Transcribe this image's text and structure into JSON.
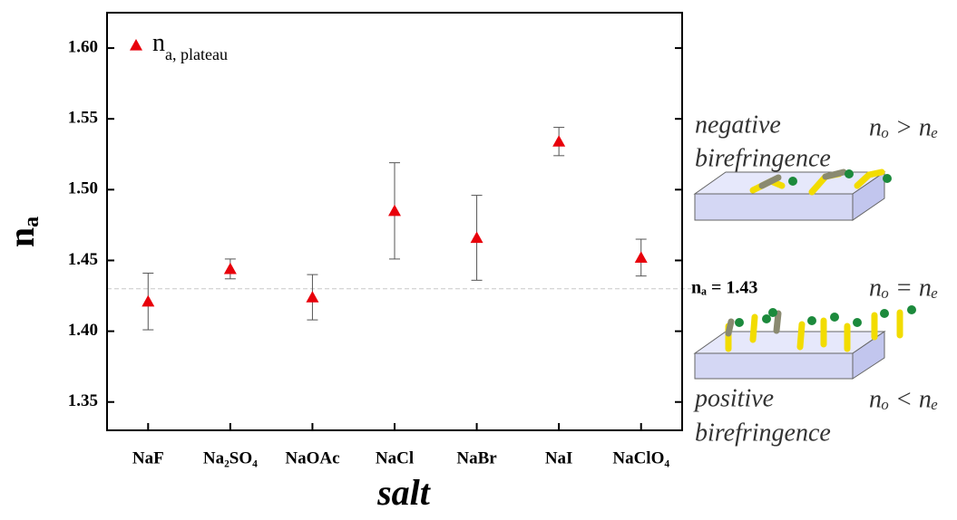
{
  "chart_data": {
    "type": "scatter",
    "categories": [
      "NaF",
      "Na₂SO₄",
      "NaOAc",
      "NaCl",
      "NaBr",
      "NaI",
      "NaClO₄"
    ],
    "series": [
      {
        "name": {
          "main": "n",
          "sub": "a, plateau"
        },
        "color": "#e8000b",
        "values": [
          1.421,
          1.444,
          1.424,
          1.485,
          1.466,
          1.534,
          1.452
        ],
        "errors": [
          0.02,
          0.007,
          0.016,
          0.034,
          0.03,
          0.01,
          0.013
        ]
      }
    ],
    "xlabel": "salt",
    "ylabel": {
      "main": "n",
      "sub": "a"
    },
    "ylim": [
      1.33,
      1.625
    ],
    "yticks": [
      1.35,
      {
        "value": 1.4,
        "label": "1.40"
      },
      1.45,
      {
        "value": 1.5,
        "label": "1.50"
      },
      1.55,
      {
        "value": 1.6,
        "label": "1.60"
      }
    ],
    "reference_line": {
      "value": 1.43,
      "label": "nₐ = 1.43",
      "color": "#c8c8c8"
    },
    "legend_position": "upper left",
    "annotations": [
      "negative",
      "birefringence",
      "nₒ > nₑ",
      "nₒ = nₑ",
      "positive",
      "birefringence",
      "nₒ < nₑ"
    ]
  }
}
